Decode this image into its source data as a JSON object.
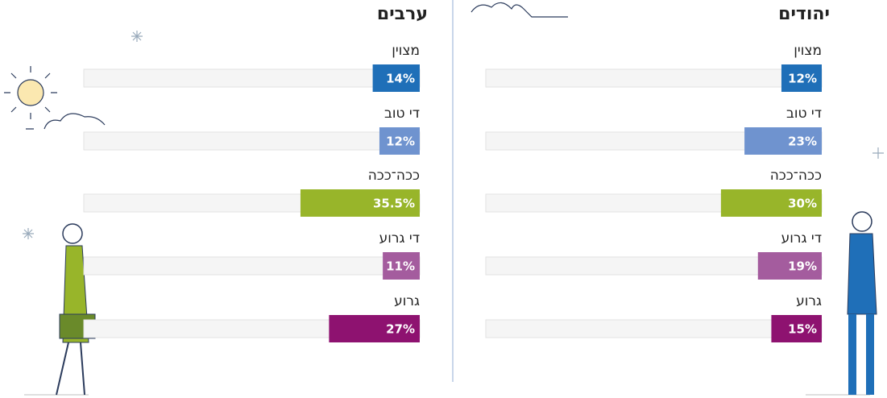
{
  "chart_data": [
    {
      "type": "bar",
      "title": "יהודים",
      "categories": [
        "מצוין",
        "די טוב",
        "ככה־ככה",
        "די גרוע",
        "גרוע"
      ],
      "values": [
        12,
        23,
        30,
        19,
        15
      ],
      "value_labels": [
        "12%",
        "23%",
        "30%",
        "19%",
        "15%"
      ],
      "colors": [
        "#1f6fb8",
        "#6f93cf",
        "#98b52a",
        "#a45c9e",
        "#8e1270"
      ],
      "xlim": [
        0,
        100
      ]
    },
    {
      "type": "bar",
      "title": "ערבים",
      "categories": [
        "מצוין",
        "די טוב",
        "ככה־ככה",
        "די גרוע",
        "גרוע"
      ],
      "values": [
        14,
        12,
        35.5,
        11,
        27
      ],
      "value_labels": [
        "14%",
        "12%",
        "35.5%",
        "11%",
        "27%"
      ],
      "colors": [
        "#1f6fb8",
        "#6f93cf",
        "#98b52a",
        "#a45c9e",
        "#8e1270"
      ],
      "xlim": [
        0,
        100
      ]
    }
  ]
}
